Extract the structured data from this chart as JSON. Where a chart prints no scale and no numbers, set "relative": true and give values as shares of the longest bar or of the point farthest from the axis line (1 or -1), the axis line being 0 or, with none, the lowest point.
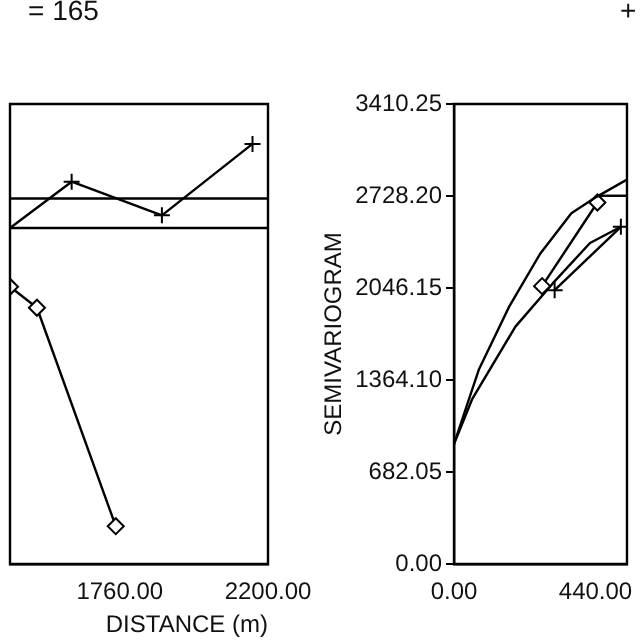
{
  "chart_data": [
    {
      "type": "line",
      "relative": true,
      "xlabel": "DISTANCE (m)",
      "annotations": [
        "= 165"
      ],
      "xlim": [
        1434,
        2200
      ],
      "xticks": [
        {
          "value": 1760,
          "label": "1760.00"
        },
        {
          "value": 2200,
          "label": "2200.00"
        }
      ],
      "grid": false,
      "legend": false,
      "ref_lines": [
        {
          "axis": "y",
          "value": 0.87
        },
        {
          "axis": "y",
          "value": 0.8
        }
      ],
      "series": [
        {
          "color": "#000000",
          "marker": "cross",
          "x": [
            1434,
            1617,
            1885,
            2154
          ],
          "values": [
            0.8,
            0.91,
            0.83,
            1
          ]
        },
        {
          "color": "#000000",
          "marker": "diamond",
          "x": [
            1434,
            1514,
            1748
          ],
          "values": [
            0.66,
            0.61,
            0.09
          ]
        }
      ]
    },
    {
      "type": "line",
      "ylabel": "SEMIVARIOGRAM",
      "annotations": [
        "+"
      ],
      "xlim": [
        0,
        538
      ],
      "xticks": [
        {
          "value": 0,
          "label": "0.00"
        },
        {
          "value": 440,
          "label": "440.00"
        }
      ],
      "ylim": [
        0,
        3410.25
      ],
      "yticks": [
        {
          "value": 0,
          "label": "0.00"
        },
        {
          "value": 682.05,
          "label": "682.05"
        },
        {
          "value": 1364.1,
          "label": "1364.10"
        },
        {
          "value": 2046.15,
          "label": "2046.15"
        },
        {
          "value": 2728.2,
          "label": "2728.20"
        },
        {
          "value": 3410.25,
          "label": "3410.25"
        }
      ],
      "grid": false,
      "legend": false,
      "series": [
        {
          "color": "#000000",
          "marker": "none",
          "x": [
            0,
            77,
            172,
            268,
            365,
            442,
            538
          ],
          "values": [
            890,
            1440,
            1910,
            2300,
            2600,
            2720,
            2850
          ]
        },
        {
          "color": "#000000",
          "marker": "diamond",
          "x": [
            274,
            446
          ],
          "values": [
            2060,
            2680
          ]
        },
        {
          "color": "#000000",
          "marker": "none",
          "x": [
            446,
            538
          ],
          "values": [
            2730,
            2730
          ]
        },
        {
          "color": "#000000",
          "marker": "cross",
          "x": [
            313,
            519
          ],
          "values": [
            2030,
            2500
          ]
        },
        {
          "color": "#000000",
          "marker": "none",
          "x": [
            0,
            56,
            191,
            307,
            423,
            519
          ],
          "values": [
            890,
            1220,
            1760,
            2080,
            2380,
            2500
          ]
        }
      ]
    }
  ]
}
